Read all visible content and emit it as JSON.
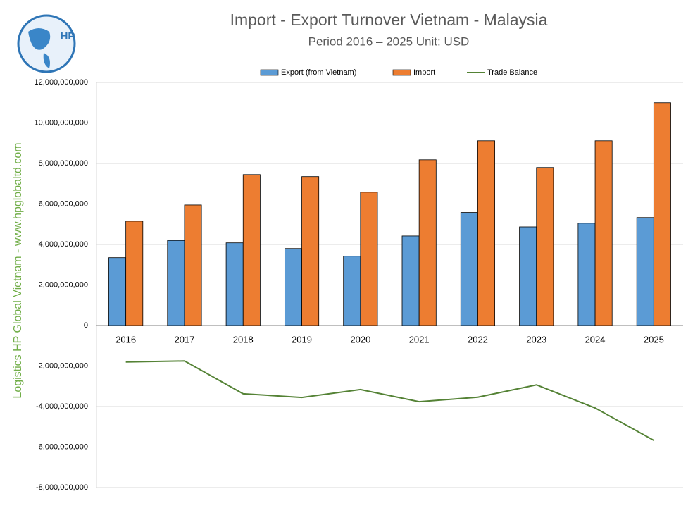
{
  "logo": {
    "text": "HP"
  },
  "watermark": "Logistics HP Global Vietnam - www.hpglobaltd.com",
  "chart_data": {
    "type": "bar",
    "title": "Import - Export Turnover Vietnam - Malaysia",
    "subtitle": "Period 2016 – 2025  Unit: USD",
    "categories": [
      "2016",
      "2017",
      "2018",
      "2019",
      "2020",
      "2021",
      "2022",
      "2023",
      "2024",
      "2025"
    ],
    "series": [
      {
        "name": "Export (from Vietnam)",
        "type": "bar",
        "color": "#5b9bd5",
        "values": [
          3350000000,
          4200000000,
          4080000000,
          3800000000,
          3420000000,
          4420000000,
          5580000000,
          4870000000,
          5050000000,
          5330000000
        ]
      },
      {
        "name": "Import",
        "type": "bar",
        "color": "#ed7d31",
        "values": [
          5150000000,
          5950000000,
          7450000000,
          7350000000,
          6580000000,
          8180000000,
          9120000000,
          7800000000,
          9120000000,
          11000000000
        ]
      },
      {
        "name": "Trade Balance",
        "type": "line",
        "color": "#548235",
        "values": [
          -1800000000,
          -1750000000,
          -3370000000,
          -3550000000,
          -3160000000,
          -3760000000,
          -3540000000,
          -2930000000,
          -4070000000,
          -5670000000
        ]
      }
    ],
    "ylim": [
      -8000000000,
      12000000000
    ],
    "yticks": [
      {
        "value": -8000000000,
        "label": "-8,000,000,000"
      },
      {
        "value": -6000000000,
        "label": "-6,000,000,000"
      },
      {
        "value": -4000000000,
        "label": "-4,000,000,000"
      },
      {
        "value": -2000000000,
        "label": "-2,000,000,000"
      },
      0,
      {
        "value": 2000000000,
        "label": "2,000,000,000"
      },
      {
        "value": 4000000000,
        "label": "4,000,000,000"
      },
      {
        "value": 6000000000,
        "label": "6,000,000,000"
      },
      {
        "value": 8000000000,
        "label": "8,000,000,000"
      },
      {
        "value": 10000000000,
        "label": "10,000,000,000"
      },
      {
        "value": 12000000000,
        "label": "12,000,000,000"
      }
    ],
    "grid": true,
    "legend": "top"
  }
}
